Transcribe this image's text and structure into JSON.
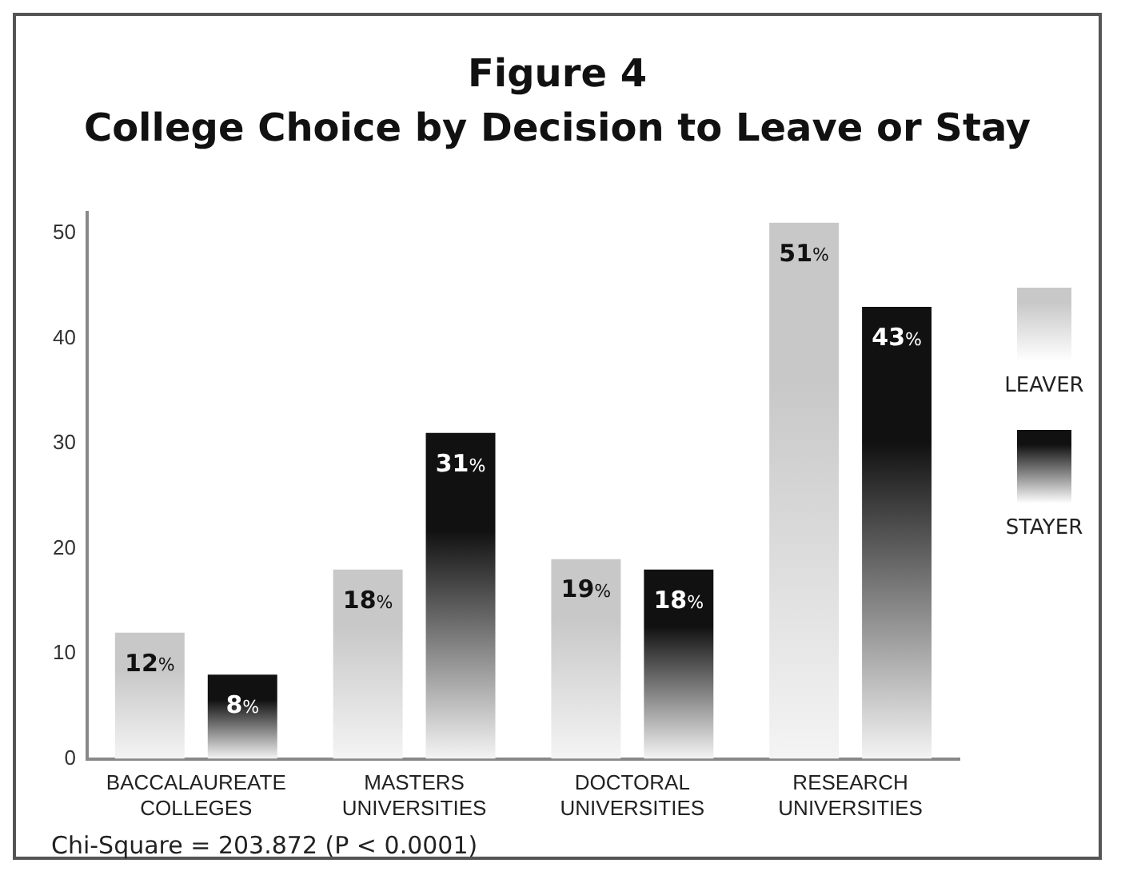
{
  "chart_data": {
    "type": "bar",
    "title": "Figure 4",
    "subtitle": "College Choice by Decision to Leave or Stay",
    "categories": [
      "BACCALAUREATE COLLEGES",
      "MASTERS UNIVERSITIES",
      "DOCTORAL UNIVERSITIES",
      "RESEARCH UNIVERSITIES"
    ],
    "series": [
      {
        "name": "LEAVER",
        "color": "#c8c8c8",
        "values": [
          12,
          18,
          19,
          51
        ],
        "value_labels": [
          "12%",
          "18%",
          "19%",
          "51%"
        ]
      },
      {
        "name": "STAYER",
        "color": "#111111",
        "values": [
          8,
          31,
          18,
          43
        ],
        "value_labels": [
          "8%",
          "31%",
          "18%",
          "43%"
        ]
      }
    ],
    "ylim": [
      0,
      52
    ],
    "yticks": [
      0,
      10,
      20,
      30,
      40,
      50
    ],
    "grid": false,
    "legend": "right",
    "annotations": [
      "Chi-Square = 203.872  (P < 0.0001)"
    ]
  }
}
